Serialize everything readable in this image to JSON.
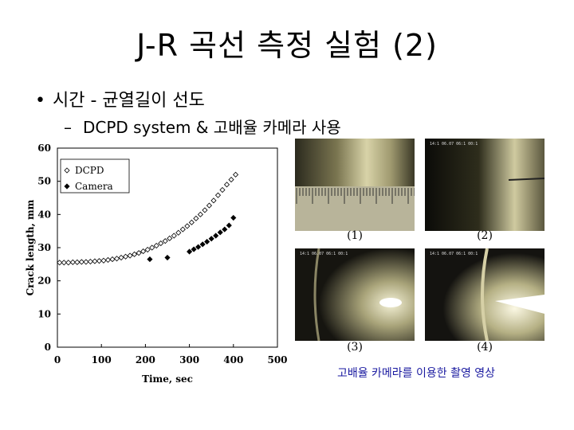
{
  "slide": {
    "title": "J-R 곡선 측정 실험 (2)",
    "bullet1": "시간 - 균열길이 선도",
    "bullet2": "DCPD system & 고배율 카메라 사용",
    "caption": "고배율 카메라를 이용한 촬영 영상"
  },
  "photos": [
    {
      "label": "(1)",
      "stamp": "",
      "icon": "ruler-crack-photo"
    },
    {
      "label": "(2)",
      "stamp": "14:1 06.07 06:1 00:1",
      "icon": "crack-tip-photo"
    },
    {
      "label": "(3)",
      "stamp": "14:1 06.07 06:1 00:1",
      "icon": "crack-tip-photo"
    },
    {
      "label": "(4)",
      "stamp": "14:1 06.07 06:1 00:1",
      "icon": "crack-tip-photo"
    }
  ],
  "chart_data": {
    "type": "scatter",
    "xlabel": "Time, sec",
    "ylabel": "Crack length, mm",
    "xlim": [
      0,
      500
    ],
    "ylim": [
      0,
      60
    ],
    "xticks": [
      0,
      100,
      200,
      300,
      400,
      500
    ],
    "yticks": [
      0,
      10,
      20,
      30,
      40,
      50,
      60
    ],
    "legend_position": "top-left",
    "grid": false,
    "series": [
      {
        "name": "DCPD",
        "marker": "open-diamond",
        "x": [
          5,
          15,
          25,
          35,
          45,
          55,
          65,
          75,
          85,
          95,
          105,
          115,
          125,
          135,
          145,
          155,
          165,
          175,
          185,
          195,
          205,
          215,
          225,
          235,
          245,
          255,
          265,
          275,
          285,
          295,
          305,
          315,
          325,
          335,
          345,
          355,
          365,
          375,
          385,
          395,
          405
        ],
        "y": [
          25.5,
          25.5,
          25.5,
          25.6,
          25.6,
          25.7,
          25.7,
          25.8,
          25.9,
          26.0,
          26.1,
          26.3,
          26.5,
          26.7,
          27.0,
          27.3,
          27.6,
          28.0,
          28.4,
          28.9,
          29.4,
          30.0,
          30.6,
          31.3,
          32.0,
          32.8,
          33.6,
          34.5,
          35.5,
          36.5,
          37.6,
          38.8,
          40.0,
          41.3,
          42.7,
          44.2,
          45.8,
          47.4,
          49.0,
          50.5,
          52.0
        ]
      },
      {
        "name": "Camera",
        "marker": "filled-diamond",
        "x": [
          210,
          250,
          300,
          310,
          320,
          330,
          340,
          350,
          360,
          370,
          380,
          390,
          400
        ],
        "y": [
          26.5,
          27.0,
          28.8,
          29.5,
          30.2,
          31.0,
          31.8,
          32.7,
          33.6,
          34.6,
          35.5,
          36.7,
          39.0
        ]
      }
    ]
  }
}
